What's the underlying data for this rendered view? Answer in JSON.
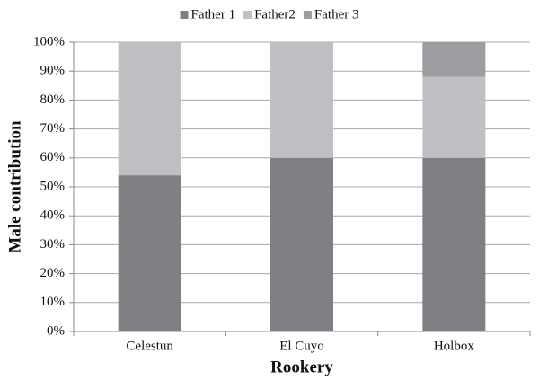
{
  "chart_data": {
    "type": "stacked_bar",
    "categories": [
      "Celestun",
      "El Cuyo",
      "Holbox"
    ],
    "series": [
      {
        "name": "Father 1",
        "color": "#808084",
        "values": [
          54,
          60,
          60
        ]
      },
      {
        "name": "Father2",
        "color": "#c0c0c4",
        "values": [
          46,
          40,
          28
        ]
      },
      {
        "name": "Father 3",
        "color": "#9d9da1",
        "values": [
          0,
          0,
          12
        ]
      }
    ],
    "x_label": "Rookery",
    "y_label": "Male contribution",
    "ylim": [
      0,
      100
    ],
    "yticks": [
      {
        "value": 0,
        "label": "0%"
      },
      {
        "value": 10,
        "label": "10%"
      },
      {
        "value": 20,
        "label": "20%"
      },
      {
        "value": 30,
        "label": "30%"
      },
      {
        "value": 40,
        "label": "40%"
      },
      {
        "value": 50,
        "label": "50%"
      },
      {
        "value": 60,
        "label": "60%"
      },
      {
        "value": 70,
        "label": "70%"
      },
      {
        "value": 80,
        "label": "80%"
      },
      {
        "value": 90,
        "label": "90%"
      },
      {
        "value": 100,
        "label": "100%"
      }
    ],
    "grid": true,
    "legend": "top"
  }
}
